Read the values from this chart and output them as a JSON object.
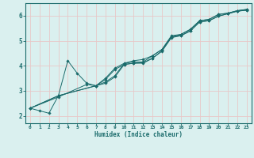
{
  "xlabel": "Humidex (Indice chaleur)",
  "ylabel": "",
  "bg_color": "#daf0ef",
  "line_color": "#1a6b6b",
  "grid_color": "#e8c8c8",
  "xlim": [
    -0.5,
    23.5
  ],
  "ylim": [
    1.7,
    6.5
  ],
  "xticks": [
    0,
    1,
    2,
    3,
    4,
    5,
    6,
    7,
    8,
    9,
    10,
    11,
    12,
    13,
    14,
    15,
    16,
    17,
    18,
    19,
    20,
    21,
    22,
    23
  ],
  "yticks": [
    2,
    3,
    4,
    5,
    6
  ],
  "lines": [
    {
      "x": [
        0,
        1,
        2,
        3,
        4,
        5,
        6,
        7,
        8,
        9,
        10,
        11,
        12,
        13,
        14,
        15,
        16,
        17,
        18,
        19,
        20,
        21,
        22,
        23
      ],
      "y": [
        2.3,
        2.2,
        2.1,
        2.8,
        4.2,
        3.7,
        3.3,
        3.2,
        3.5,
        3.9,
        4.1,
        4.2,
        4.25,
        4.4,
        4.65,
        5.15,
        5.25,
        5.45,
        5.8,
        5.85,
        6.05,
        6.1,
        6.2,
        6.25
      ]
    },
    {
      "x": [
        0,
        3,
        7,
        8,
        9,
        10,
        11,
        12,
        13,
        14,
        15,
        16,
        17,
        18,
        19,
        20,
        21,
        22,
        23
      ],
      "y": [
        2.3,
        2.8,
        3.2,
        3.35,
        3.6,
        4.1,
        4.15,
        4.15,
        4.4,
        4.65,
        5.2,
        5.25,
        5.45,
        5.8,
        5.85,
        6.05,
        6.1,
        6.2,
        6.25
      ]
    },
    {
      "x": [
        0,
        3,
        7,
        8,
        9,
        10,
        11,
        12,
        13,
        14,
        15,
        16,
        17,
        18,
        19,
        20,
        21,
        22,
        23
      ],
      "y": [
        2.3,
        2.8,
        3.2,
        3.3,
        3.55,
        4.05,
        4.1,
        4.12,
        4.3,
        4.6,
        5.15,
        5.2,
        5.4,
        5.75,
        5.8,
        5.98,
        6.08,
        6.18,
        6.22
      ]
    },
    {
      "x": [
        0,
        3,
        6,
        7,
        8,
        9,
        10,
        11,
        12,
        13,
        14,
        15,
        16,
        17,
        18,
        19,
        20,
        21,
        22,
        23
      ],
      "y": [
        2.3,
        2.75,
        3.25,
        3.2,
        3.45,
        3.85,
        4.05,
        4.1,
        4.1,
        4.3,
        4.58,
        5.12,
        5.2,
        5.38,
        5.75,
        5.8,
        5.98,
        6.08,
        6.18,
        6.22
      ]
    }
  ]
}
